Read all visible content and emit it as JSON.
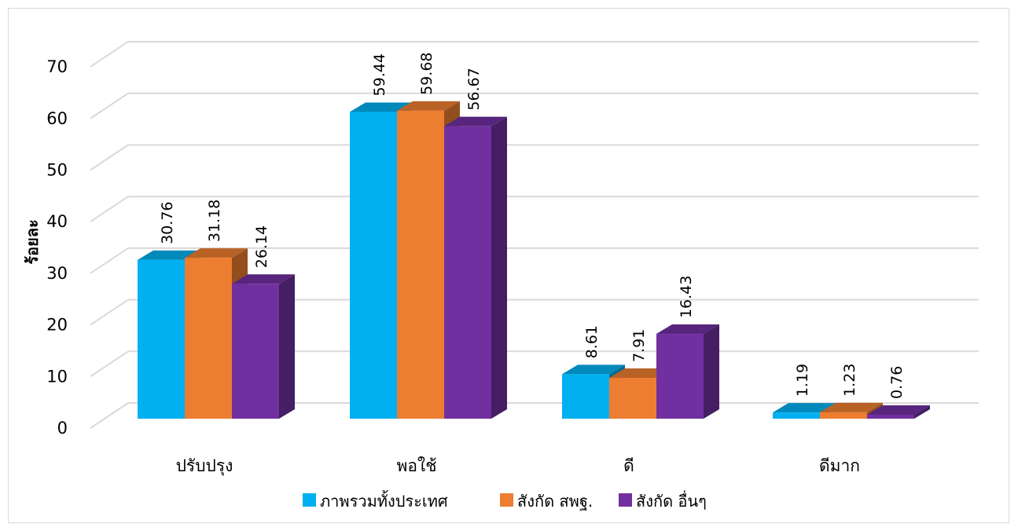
{
  "chart_data": {
    "type": "bar",
    "style": "3d-clustered",
    "categories": [
      "ปรับปรุง",
      "พอใช้",
      "ดี",
      "ดีมาก"
    ],
    "series": [
      {
        "name": "ภาพรวมทั้งประเทศ",
        "color": "#00b0f0",
        "values": [
          30.76,
          59.44,
          8.61,
          1.19
        ]
      },
      {
        "name": "สังกัด สพฐ.",
        "color": "#ed7d31",
        "values": [
          31.18,
          59.68,
          7.91,
          1.23
        ]
      },
      {
        "name": "สังกัด อื่นๆ",
        "color": "#7030a0",
        "values": [
          26.14,
          56.67,
          16.43,
          0.76
        ]
      }
    ],
    "value_labels": [
      [
        "30.76",
        "59.44",
        "8.61",
        "1.19"
      ],
      [
        "31.18",
        "59.68",
        "7.91",
        "1.23"
      ],
      [
        "26.14",
        "56.67",
        "16.43",
        "0.76"
      ]
    ],
    "y_ticks": [
      "0",
      "10",
      "20",
      "30",
      "40",
      "50",
      "60",
      "70"
    ],
    "ylim": [
      0,
      70
    ],
    "ylabel": "ร้อยละ",
    "xlabel": "",
    "title": "",
    "grid": true,
    "legend_position": "bottom"
  }
}
